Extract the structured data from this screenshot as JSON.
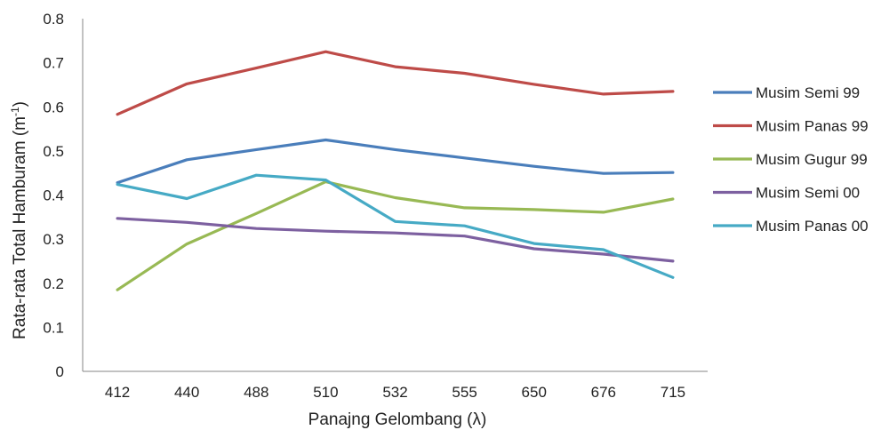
{
  "chart_data": {
    "type": "line",
    "categories": [
      "412",
      "440",
      "488",
      "510",
      "532",
      "555",
      "650",
      "676",
      "715"
    ],
    "ylim": [
      0,
      0.8
    ],
    "yticks": [
      "0",
      "0.1",
      "0.2",
      "0.3",
      "0.4",
      "0.5",
      "0.6",
      "0.7",
      "0.8"
    ],
    "ytick_values": [
      0,
      0.1,
      0.2,
      0.3,
      0.4,
      0.5,
      0.6,
      0.7,
      0.8
    ],
    "xlabel": "Panajng Gelombang (λ)",
    "ylabel_main": "Rata-rata Total Hamburam (m",
    "ylabel_sup": "-1",
    "ylabel_close": ")",
    "grid": false,
    "legend_position": "right",
    "series": [
      {
        "name": "Musim Semi 99",
        "color": "#4a7ebb",
        "values": [
          0.428,
          0.48,
          0.503,
          0.525,
          0.503,
          0.484,
          0.465,
          0.449,
          0.451
        ]
      },
      {
        "name": "Musim Panas 99",
        "color": "#be4b48",
        "values": [
          0.583,
          0.652,
          0.688,
          0.725,
          0.691,
          0.676,
          0.651,
          0.629,
          0.635
        ]
      },
      {
        "name": "Musim Gugur 99",
        "color": "#98b954",
        "values": [
          0.185,
          0.289,
          0.358,
          0.43,
          0.394,
          0.371,
          0.367,
          0.361,
          0.391
        ]
      },
      {
        "name": "Musim Semi 00",
        "color": "#7d60a0",
        "values": [
          0.347,
          0.338,
          0.324,
          0.318,
          0.314,
          0.307,
          0.278,
          0.266,
          0.25
        ]
      },
      {
        "name": "Musim Panas 00",
        "color": "#46aac5",
        "values": [
          0.424,
          0.392,
          0.445,
          0.434,
          0.34,
          0.33,
          0.29,
          0.276,
          0.213
        ]
      }
    ]
  }
}
